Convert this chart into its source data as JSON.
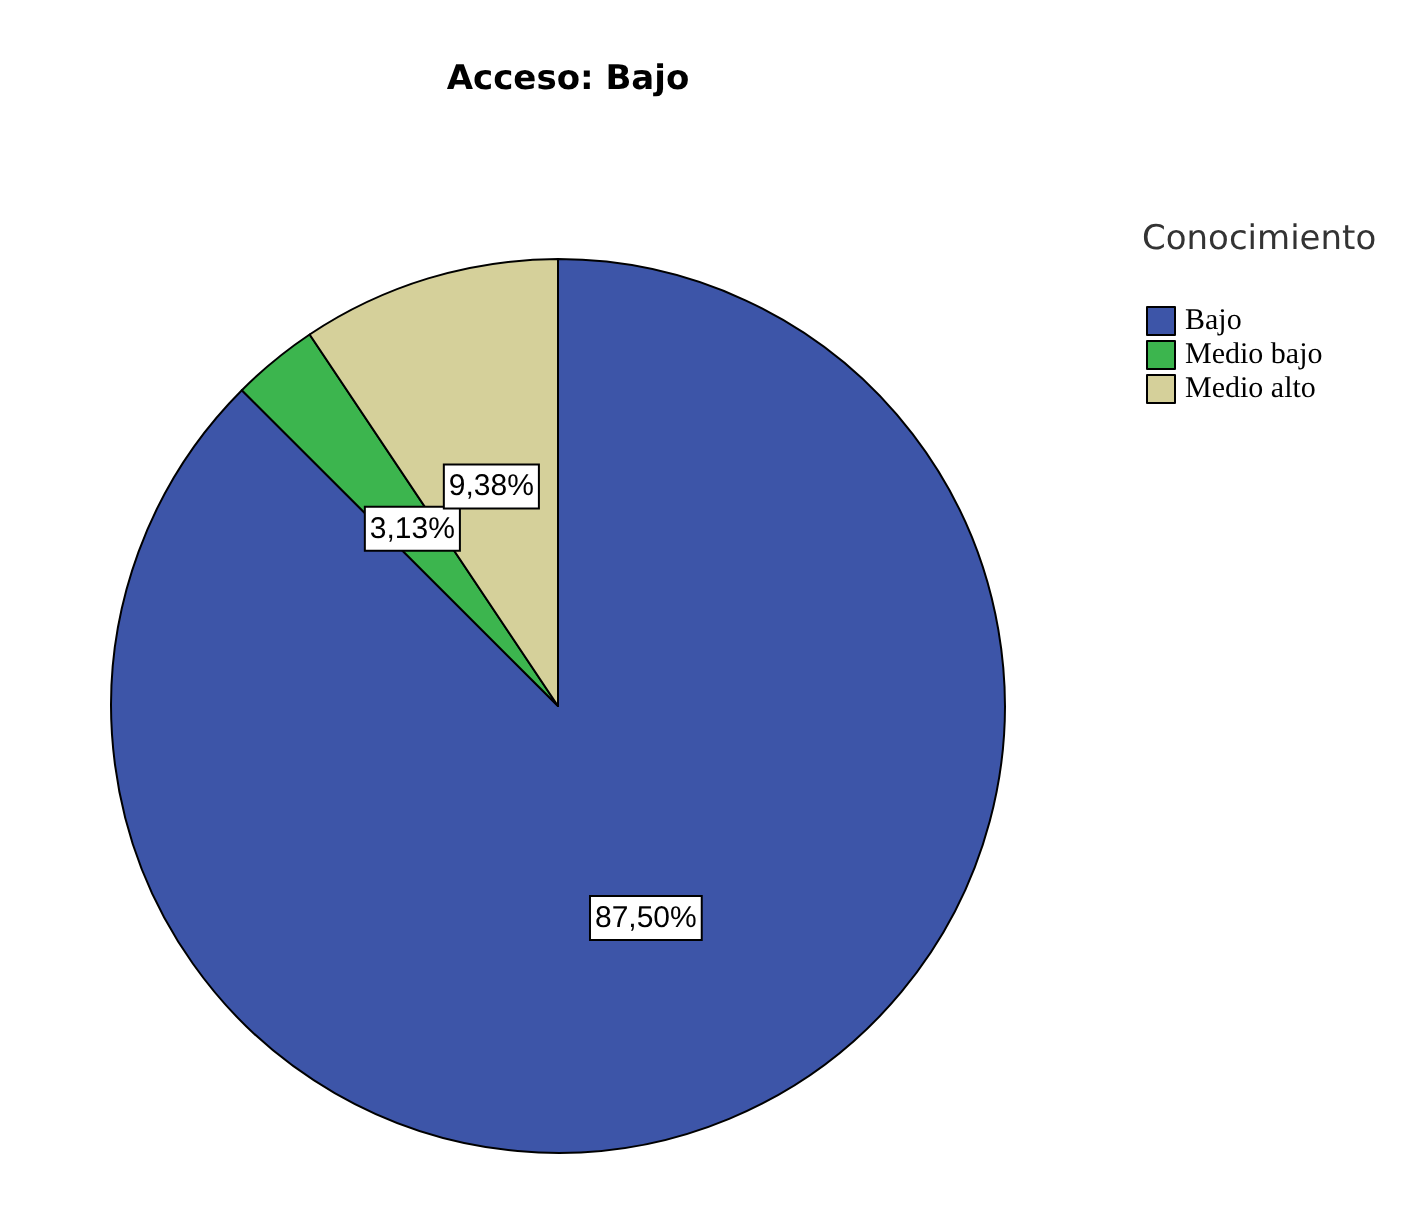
{
  "chart_data": {
    "type": "pie",
    "title": "Acceso: Bajo",
    "legend_title": "Conocimiento",
    "legend": "top right",
    "categories": [
      "Bajo",
      "Medio bajo",
      "Medio alto"
    ],
    "values": [
      87.5,
      3.13,
      9.38
    ],
    "colors": [
      "#3d55a8",
      "#3cb54e",
      "#d5d09a"
    ],
    "value_labels": [
      "87,50%",
      "3,13%",
      "9,38%"
    ]
  }
}
